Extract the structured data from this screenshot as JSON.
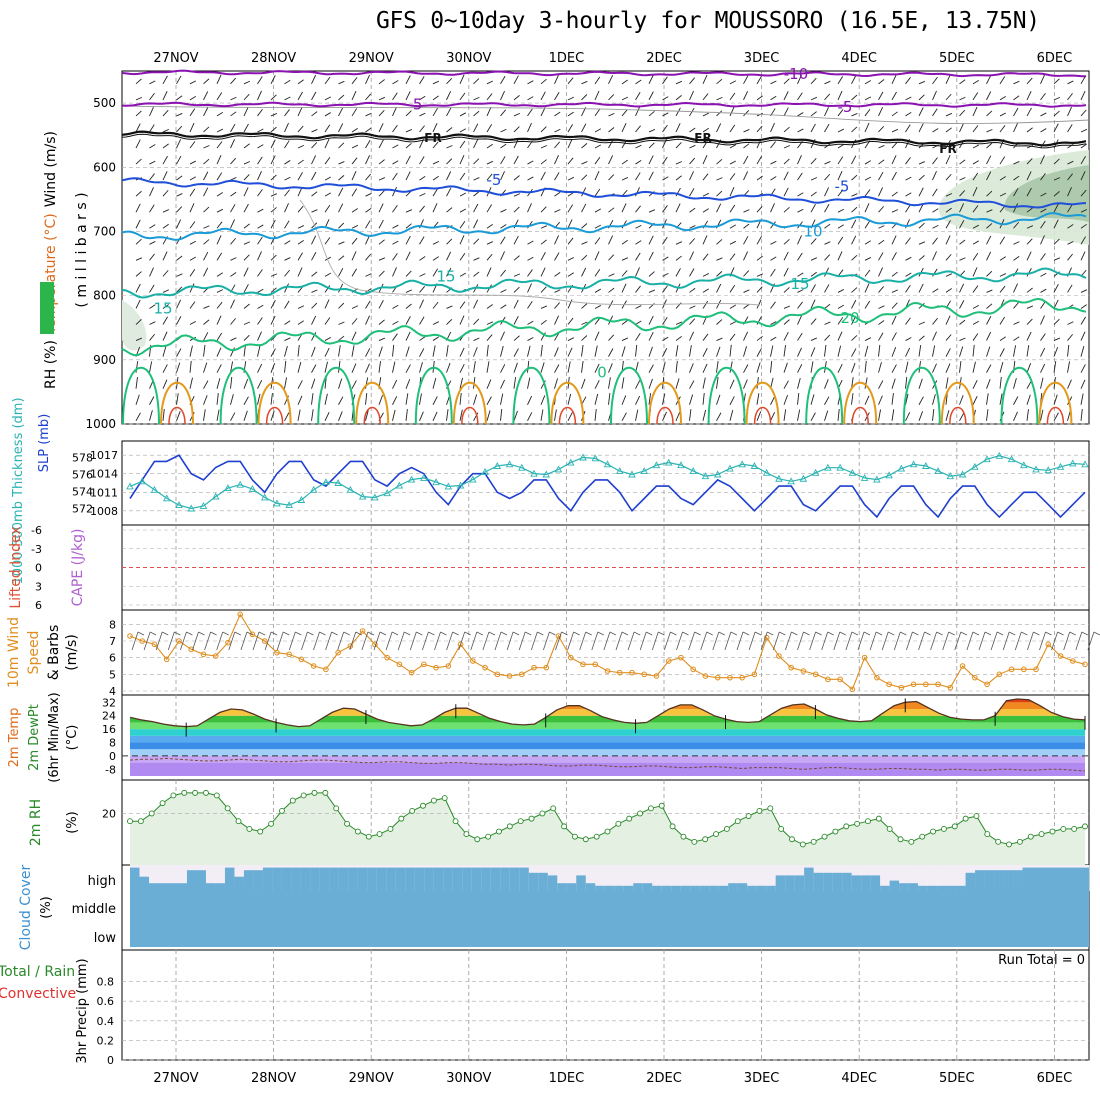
{
  "title": "GFS 0~10day 3-hourly for MOUSSORO (16.5E, 13.75N)",
  "colors": {
    "purple": "#8a12b0",
    "black": "#111111",
    "blue": "#1f4fd8",
    "lightblue": "#1a9ad6",
    "teal": "#18b0a6",
    "green": "#1fbf7a",
    "orange": "#e39a1c",
    "red": "#e0482a",
    "slp": "#1f3fd0",
    "thick": "#2cb3b3",
    "wind10": "#e08e1e",
    "rh2m": "#2a8a2a",
    "cloud": "#6aadd5",
    "cloudgap": "#f3eef6"
  },
  "chart_data": [
    {
      "type": "heatmap",
      "panel": "upper-air",
      "ylabel_parts": [
        "RH (%)",
        "Temperature (°C)",
        "Wind (m/s)"
      ],
      "ylabel_unit": "( m i l l i b a r s )",
      "y_ticks": [
        "500",
        "600",
        "700",
        "800",
        "900",
        "1000"
      ],
      "ylim": [
        450,
        1000
      ],
      "x_ticks": [
        "27NOV",
        "28NOV",
        "29NOV",
        "30NOV",
        "1DEC",
        "2DEC",
        "3DEC",
        "4DEC",
        "5DEC",
        "6DEC"
      ],
      "contours": [
        {
          "label": "-10",
          "level_mb": 455
        },
        {
          "label": "-5",
          "level_mb": 502
        },
        {
          "label": "FR",
          "level_mb": 556
        },
        {
          "label": "-5",
          "level_mb": 620
        },
        {
          "label": "10",
          "level_mb": 700
        },
        {
          "label": "15",
          "level_mb": 770
        },
        {
          "label": "20",
          "level_mb": 835
        },
        {
          "label": "15",
          "level_mb": 820
        },
        {
          "label": "0",
          "level_mb": 920
        }
      ]
    },
    {
      "type": "line",
      "panel": "slp-thickness",
      "ylabel_left": "1000-500mb Thickness (dm)",
      "ylabel_right": "SLP (mb)",
      "y_ticks_left": [
        "578",
        "576",
        "574",
        "572"
      ],
      "y_ticks_right": [
        "1017",
        "1014",
        "1011",
        "1008"
      ],
      "series": [
        {
          "name": "SLP (mb)",
          "values": [
            1010,
            1013,
            1016,
            1016,
            1017,
            1014,
            1013,
            1015,
            1016,
            1016,
            1013,
            1011,
            1014,
            1016,
            1016,
            1013,
            1012,
            1014,
            1016,
            1016,
            1013,
            1012,
            1014,
            1015,
            1014,
            1011,
            1009,
            1012,
            1014,
            1014,
            1011,
            1010,
            1011,
            1013,
            1013,
            1010,
            1008,
            1011,
            1013,
            1013,
            1011,
            1008,
            1010,
            1012,
            1012,
            1010,
            1009,
            1011,
            1013,
            1012,
            1010,
            1008,
            1010,
            1012,
            1012,
            1009,
            1008,
            1010,
            1012,
            1012,
            1009,
            1007,
            1010,
            1012,
            1012,
            1009,
            1007,
            1010,
            1012,
            1012,
            1009,
            1007,
            1009,
            1011,
            1011,
            1009,
            1007,
            1009,
            1011
          ]
        },
        {
          "name": "Thickness (dm)",
          "values": [
            574.6,
            575.2,
            574.2,
            573.2,
            572.4,
            572.0,
            572.3,
            573.4,
            574.4,
            574.8,
            574.3,
            573.3,
            572.6,
            572.4,
            573.0,
            574.2,
            575.1,
            575.0,
            574.2,
            573.4,
            573.3,
            573.8,
            574.7,
            575.4,
            575.6,
            575.1,
            574.6,
            574.7,
            575.4,
            576.3,
            577.0,
            577.2,
            576.8,
            576.1,
            576.0,
            576.6,
            577.4,
            578.0,
            577.9,
            577.2,
            576.4,
            576.0,
            576.4,
            577.1,
            577.4,
            577.1,
            576.4,
            575.8,
            576.0,
            576.7,
            577.2,
            577.0,
            576.2,
            575.5,
            575.2,
            575.5,
            576.2,
            576.8,
            576.8,
            576.2,
            575.6,
            575.4,
            575.9,
            576.7,
            577.2,
            577.0,
            576.4,
            575.8,
            576.0,
            576.9,
            577.8,
            578.2,
            577.8,
            577.1,
            576.6,
            576.5,
            576.9,
            577.3,
            577.2
          ]
        }
      ]
    },
    {
      "type": "line",
      "panel": "lifted-index-cape",
      "ylabel_parts": [
        "Lifted Index",
        "CAPE (J/kg)"
      ],
      "y_ticks": [
        "-6",
        "-3",
        "0",
        "3",
        "6"
      ],
      "series": [
        {
          "name": "Lifted Index",
          "values": [
            0
          ]
        }
      ]
    },
    {
      "type": "line",
      "panel": "wind-10m",
      "ylabel_parts": [
        "10m Wind",
        "Speed",
        "& Barbs",
        "(m/s)"
      ],
      "y_ticks": [
        "8",
        "7",
        "6",
        "5",
        "4"
      ],
      "ylim": [
        4,
        8.5
      ],
      "series": [
        {
          "name": "10m Wind Speed",
          "values": [
            7.3,
            7.0,
            6.8,
            5.9,
            7.0,
            6.5,
            6.2,
            6.1,
            6.9,
            8.6,
            7.4,
            7.0,
            6.3,
            6.2,
            5.9,
            5.5,
            5.3,
            6.3,
            6.7,
            7.6,
            6.8,
            6.0,
            5.6,
            5.1,
            5.6,
            5.4,
            5.5,
            6.8,
            5.8,
            5.4,
            5.0,
            4.9,
            5.0,
            5.4,
            5.4,
            7.3,
            6.0,
            5.6,
            5.6,
            5.2,
            5.1,
            5.1,
            5.0,
            4.9,
            5.8,
            6.0,
            5.3,
            4.9,
            4.8,
            4.8,
            4.8,
            5.0,
            7.2,
            6.1,
            5.4,
            5.2,
            5.0,
            4.7,
            4.7,
            4.1,
            6.0,
            4.8,
            4.4,
            4.2,
            4.4,
            4.4,
            4.4,
            4.2,
            5.5,
            4.8,
            4.4,
            5.0,
            5.3,
            5.3,
            5.3,
            6.8,
            6.1,
            5.8,
            5.6
          ]
        }
      ]
    },
    {
      "type": "area",
      "panel": "temp-dewpoint",
      "ylabel_parts": [
        "2m Temp",
        "2m DewPt",
        "(6hr Min/Max)",
        "(°C)"
      ],
      "y_ticks": [
        "32",
        "24",
        "16",
        "8",
        "0",
        "-8"
      ],
      "ylim": [
        -12,
        34
      ],
      "series": [
        {
          "name": "2m Temp",
          "values": [
            23,
            21.5,
            20.5,
            19,
            18,
            17.5,
            18,
            22,
            26,
            28,
            27.5,
            25,
            22,
            20,
            18.5,
            17.5,
            18,
            22,
            26,
            28.5,
            28,
            25,
            22,
            20,
            19,
            18,
            18.5,
            22,
            26,
            28.5,
            28.5,
            25.5,
            22.5,
            20.5,
            19,
            18.5,
            19,
            23,
            27.5,
            30,
            30,
            27,
            23.5,
            21.5,
            20,
            19.5,
            20,
            24,
            28,
            30.5,
            30.5,
            27.5,
            24,
            22,
            20.5,
            20,
            20.5,
            24.5,
            28.5,
            30.5,
            31,
            28,
            24.5,
            22.5,
            21,
            20.5,
            21,
            25.5,
            30,
            32,
            32.5,
            29,
            25.5,
            23,
            22,
            21.5,
            21.5,
            24,
            33,
            34,
            33.5,
            30,
            26,
            23.5,
            22,
            21.5
          ]
        },
        {
          "name": "2m DewPt",
          "values": [
            -2.5,
            -2,
            -2,
            -1.5,
            -2,
            -2.5,
            -3,
            -3,
            -2.5,
            -2,
            -2.5,
            -3,
            -3.5,
            -3.5,
            -3,
            -2.5,
            -2.5,
            -3,
            -3.5,
            -4,
            -4,
            -3.5,
            -3.5,
            -4,
            -4.5,
            -4.5,
            -4,
            -4,
            -4.5,
            -5,
            -5,
            -5.5,
            -5,
            -5,
            -5.5,
            -6,
            -6,
            -5.5,
            -5.5,
            -6,
            -6.5,
            -6.5,
            -6,
            -6,
            -6.5,
            -7,
            -7,
            -6.5,
            -6.5,
            -7,
            -7.5,
            -7,
            -7,
            -7,
            -7.5,
            -8,
            -7.5,
            -7,
            -7,
            -7.5,
            -8,
            -8,
            -7.5,
            -7.5,
            -8,
            -8,
            -8.5,
            -8,
            -8,
            -8.5,
            -8.5,
            -8,
            -8,
            -8.5,
            -8.5,
            -8,
            -8,
            -8.5,
            -9
          ]
        }
      ]
    },
    {
      "type": "area",
      "panel": "rh-2m",
      "ylabel_parts": [
        "2m RH",
        "(%)"
      ],
      "y_ticks": [
        "20"
      ],
      "ylim": [
        0,
        33
      ],
      "series": [
        {
          "name": "2m RH",
          "values": [
            17,
            17,
            20,
            24,
            27,
            28,
            28,
            28,
            27,
            22,
            17,
            14,
            13,
            16,
            21,
            25,
            27,
            28,
            28,
            22,
            16,
            13,
            11,
            12,
            14,
            18,
            21,
            23,
            25,
            26,
            17,
            12,
            10,
            11,
            13,
            15,
            17,
            18,
            20,
            22,
            15,
            11,
            10,
            11,
            13,
            16,
            18,
            20,
            22,
            23,
            15,
            11,
            9,
            10,
            12,
            14,
            17,
            19,
            21,
            22,
            14,
            10,
            8,
            9,
            11,
            13,
            15,
            16,
            17,
            18,
            14,
            10,
            9,
            11,
            13,
            14,
            15,
            18,
            19,
            12,
            9,
            8,
            9,
            11,
            12,
            13,
            14,
            14,
            15
          ]
        }
      ]
    },
    {
      "type": "bar",
      "panel": "cloud-cover",
      "ylabel_parts": [
        "Cloud Cover",
        "(%)"
      ],
      "y_ticks": [
        "high",
        "middle",
        "low"
      ],
      "series": [
        {
          "name": "high cloud (%)",
          "values": [
            90,
            55,
            30,
            30,
            30,
            30,
            80,
            80,
            30,
            30,
            90,
            55,
            80,
            80,
            90,
            90,
            90,
            90,
            90,
            90,
            90,
            90,
            90,
            90,
            90,
            90,
            90,
            90,
            90,
            90,
            90,
            90,
            90,
            90,
            90,
            90,
            90,
            90,
            90,
            90,
            90,
            90,
            70,
            70,
            60,
            30,
            30,
            60,
            30,
            20,
            20,
            20,
            20,
            30,
            30,
            20,
            20,
            20,
            20,
            20,
            20,
            20,
            20,
            30,
            30,
            20,
            20,
            20,
            60,
            60,
            60,
            90,
            70,
            70,
            70,
            70,
            60,
            60,
            60,
            20,
            40,
            30,
            30,
            20,
            20,
            20,
            20,
            20,
            70,
            80,
            80,
            80,
            80,
            80,
            90,
            90,
            90,
            90,
            90,
            90,
            90
          ]
        }
      ]
    },
    {
      "type": "bar",
      "panel": "precip",
      "ylabel_parts": [
        "Total / Rain",
        "Convective",
        "3hr Precip (mm)"
      ],
      "y_ticks": [
        "0.8",
        "0.6",
        "0.4",
        "0.2",
        "0"
      ],
      "ylim": [
        0,
        1
      ],
      "annotation": "Run Total = 0",
      "series": [
        {
          "name": "3hr Precip",
          "values": [
            0
          ]
        }
      ]
    }
  ]
}
